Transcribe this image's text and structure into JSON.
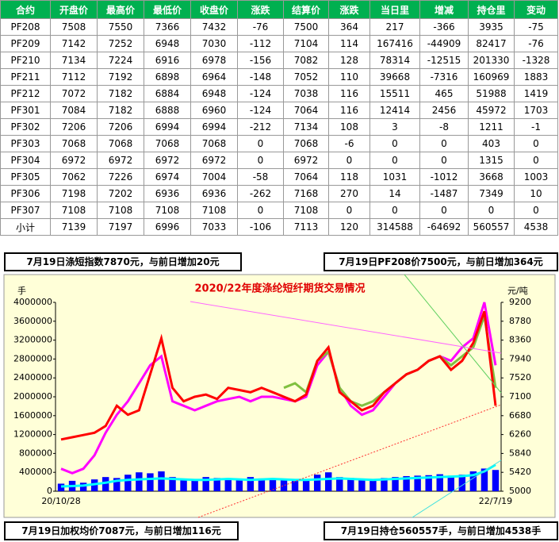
{
  "table": {
    "header": [
      "合约",
      "开盘价",
      "最高价",
      "最低价",
      "收盘价",
      "涨跌",
      "结算价",
      "涨跌",
      "当日里",
      "增减",
      "持仓里",
      "变动"
    ],
    "rows": [
      [
        "PF208",
        "7508",
        "7550",
        "7366",
        "7432",
        "-76",
        "7500",
        "364",
        "217",
        "-366",
        "3935",
        "-75"
      ],
      [
        "PF209",
        "7142",
        "7252",
        "6948",
        "7030",
        "-112",
        "7104",
        "114",
        "167416",
        "-44909",
        "82417",
        "-76"
      ],
      [
        "PF210",
        "7134",
        "7224",
        "6916",
        "6978",
        "-156",
        "7082",
        "128",
        "78314",
        "-12515",
        "201330",
        "-1328"
      ],
      [
        "PF211",
        "7112",
        "7192",
        "6898",
        "6964",
        "-148",
        "7052",
        "110",
        "39668",
        "-7316",
        "160969",
        "1883"
      ],
      [
        "PF212",
        "7072",
        "7182",
        "6884",
        "6948",
        "-124",
        "7038",
        "116",
        "15511",
        "465",
        "51988",
        "1419"
      ],
      [
        "PF301",
        "7084",
        "7182",
        "6888",
        "6960",
        "-124",
        "7064",
        "116",
        "12414",
        "2456",
        "45972",
        "1703"
      ],
      [
        "PF302",
        "7206",
        "7206",
        "6994",
        "6994",
        "-212",
        "7134",
        "108",
        "3",
        "-8",
        "1211",
        "-1"
      ],
      [
        "PF303",
        "7068",
        "7068",
        "7068",
        "7068",
        "0",
        "7068",
        "-6",
        "0",
        "0",
        "403",
        "0"
      ],
      [
        "PF304",
        "6972",
        "6972",
        "6972",
        "6972",
        "0",
        "6972",
        "0",
        "0",
        "0",
        "1315",
        "0"
      ],
      [
        "PF305",
        "7062",
        "7226",
        "6974",
        "7004",
        "-58",
        "7064",
        "118",
        "1031",
        "-1012",
        "3668",
        "1003"
      ],
      [
        "PF306",
        "7198",
        "7202",
        "6936",
        "6936",
        "-262",
        "7168",
        "270",
        "14",
        "-1487",
        "7349",
        "10"
      ],
      [
        "PF307",
        "7108",
        "7108",
        "7108",
        "7108",
        "0",
        "7108",
        "0",
        "0",
        "0",
        "0",
        "0"
      ],
      [
        "小计",
        "7139",
        "7197",
        "6996",
        "7033",
        "-106",
        "7113",
        "120",
        "314588",
        "-64692",
        "560557",
        "4538"
      ]
    ]
  },
  "notes": {
    "top_left": "7月19日涤短指数7870元，与前日增加20元",
    "top_right": "7月19日PF208价7500元，与前日增加364元",
    "bottom_left": "7月19日加权均价7087元，与前日增加116元",
    "bottom_right": "7月19日持仓560557手，与前日增加4538手"
  },
  "chart_data": {
    "type": "line",
    "title": "2020/22年度涤纶短纤期货交易情况",
    "y_label": "手",
    "y2_label": "元/吨",
    "categories": [
      "20/10/28",
      null,
      null,
      null,
      null,
      null,
      null,
      null,
      null,
      null,
      null,
      null,
      null,
      null,
      null,
      null,
      null,
      null,
      null,
      null,
      null,
      null,
      null,
      null,
      null,
      null,
      null,
      null,
      null,
      null,
      null,
      null,
      null,
      null,
      null,
      null,
      null,
      null,
      null,
      "22/7/19"
    ],
    "ylim": [
      0,
      4000000
    ],
    "yticks": [
      0,
      400000,
      800000,
      1200000,
      1600000,
      2000000,
      2400000,
      2800000,
      3200000,
      3600000,
      4000000
    ],
    "y2lim": [
      5000,
      9200
    ],
    "y2ticks": [
      5000,
      5420,
      5840,
      6260,
      6680,
      7100,
      7520,
      7940,
      8360,
      8780,
      9200
    ],
    "series": [
      {
        "kind": "bar",
        "color": "#0000ff",
        "values": [
          160000,
          220000,
          180000,
          250000,
          300000,
          280000,
          350000,
          400000,
          380000,
          420000,
          300000,
          260000,
          240000,
          300000,
          280000,
          260000,
          250000,
          300000,
          270000,
          260000,
          240000,
          220000,
          260000,
          350000,
          400000,
          300000,
          280000,
          260000,
          250000,
          280000,
          300000,
          320000,
          330000,
          340000,
          360000,
          330000,
          350000,
          420000,
          480000,
          450000
        ]
      },
      {
        "kind": "line",
        "color": "#00ffff",
        "values": [
          100000,
          110000,
          120000,
          150000,
          180000,
          220000,
          240000,
          250000,
          260000,
          270000,
          260000,
          250000,
          240000,
          240000,
          250000,
          260000,
          250000,
          240000,
          250000,
          260000,
          250000,
          240000,
          240000,
          250000,
          260000,
          270000,
          260000,
          250000,
          240000,
          250000,
          260000,
          270000,
          280000,
          290000,
          300000,
          310000,
          320000,
          340000,
          420000,
          560000
        ]
      },
      {
        "kind": "line",
        "axis": "y2",
        "color": "#ff00ff",
        "values": [
          5500,
          5400,
          5500,
          5800,
          6300,
          6700,
          7000,
          7400,
          7800,
          8000,
          7000,
          6900,
          6800,
          6900,
          7000,
          7050,
          7100,
          7000,
          7100,
          7100,
          7050,
          7000,
          7100,
          7800,
          8100,
          7300,
          6900,
          6700,
          6800,
          7100,
          7400,
          7600,
          7700,
          7900,
          8000,
          7900,
          8200,
          8400,
          9200,
          7800
        ]
      },
      {
        "kind": "line",
        "axis": "y2",
        "color": "#80c040",
        "values": [
          null,
          null,
          null,
          null,
          null,
          null,
          null,
          null,
          null,
          null,
          null,
          null,
          null,
          null,
          null,
          null,
          null,
          null,
          null,
          null,
          7300,
          7400,
          7200,
          7900,
          8100,
          7300,
          7000,
          6900,
          7000,
          7200,
          7400,
          7600,
          7700,
          7900,
          8000,
          7800,
          8000,
          8200,
          8900,
          7300
        ]
      },
      {
        "kind": "line",
        "axis": "y2",
        "color": "#ff0000",
        "values": [
          6150,
          6200,
          6250,
          6300,
          6450,
          6900,
          6700,
          6800,
          7600,
          8400,
          7300,
          7000,
          7100,
          7150,
          7050,
          7300,
          7250,
          7200,
          7300,
          7200,
          7100,
          7000,
          7150,
          7900,
          8200,
          7200,
          7000,
          6800,
          6900,
          7200,
          7400,
          7600,
          7700,
          7900,
          8000,
          7700,
          7900,
          8300,
          9000,
          6900
        ]
      }
    ]
  }
}
